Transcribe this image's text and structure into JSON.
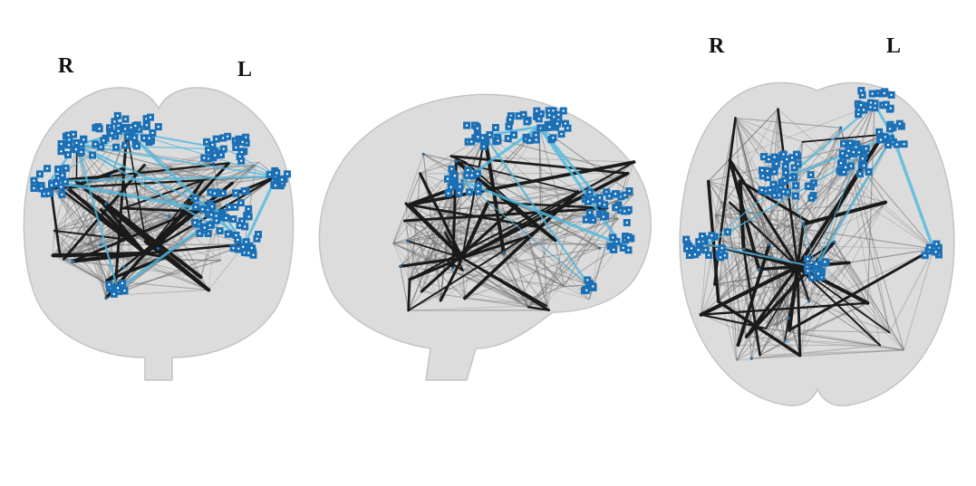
{
  "figure": {
    "views": [
      {
        "id": "coronal",
        "labels": {
          "left_side": "R",
          "right_side": "L"
        }
      },
      {
        "id": "sagittal",
        "labels": {}
      },
      {
        "id": "axial",
        "labels": {
          "left_side": "R",
          "right_side": "L"
        }
      }
    ],
    "colors": {
      "brain_fill": "#dcdcdc",
      "brain_edge": "#c4c4c4",
      "edge_dark": "#1a1a1a",
      "edge_gray": "#6e6e6e",
      "edge_cyan": "#4fb8de",
      "node_blue": "#1a6fb5",
      "node_dot": "#ffffff"
    }
  }
}
